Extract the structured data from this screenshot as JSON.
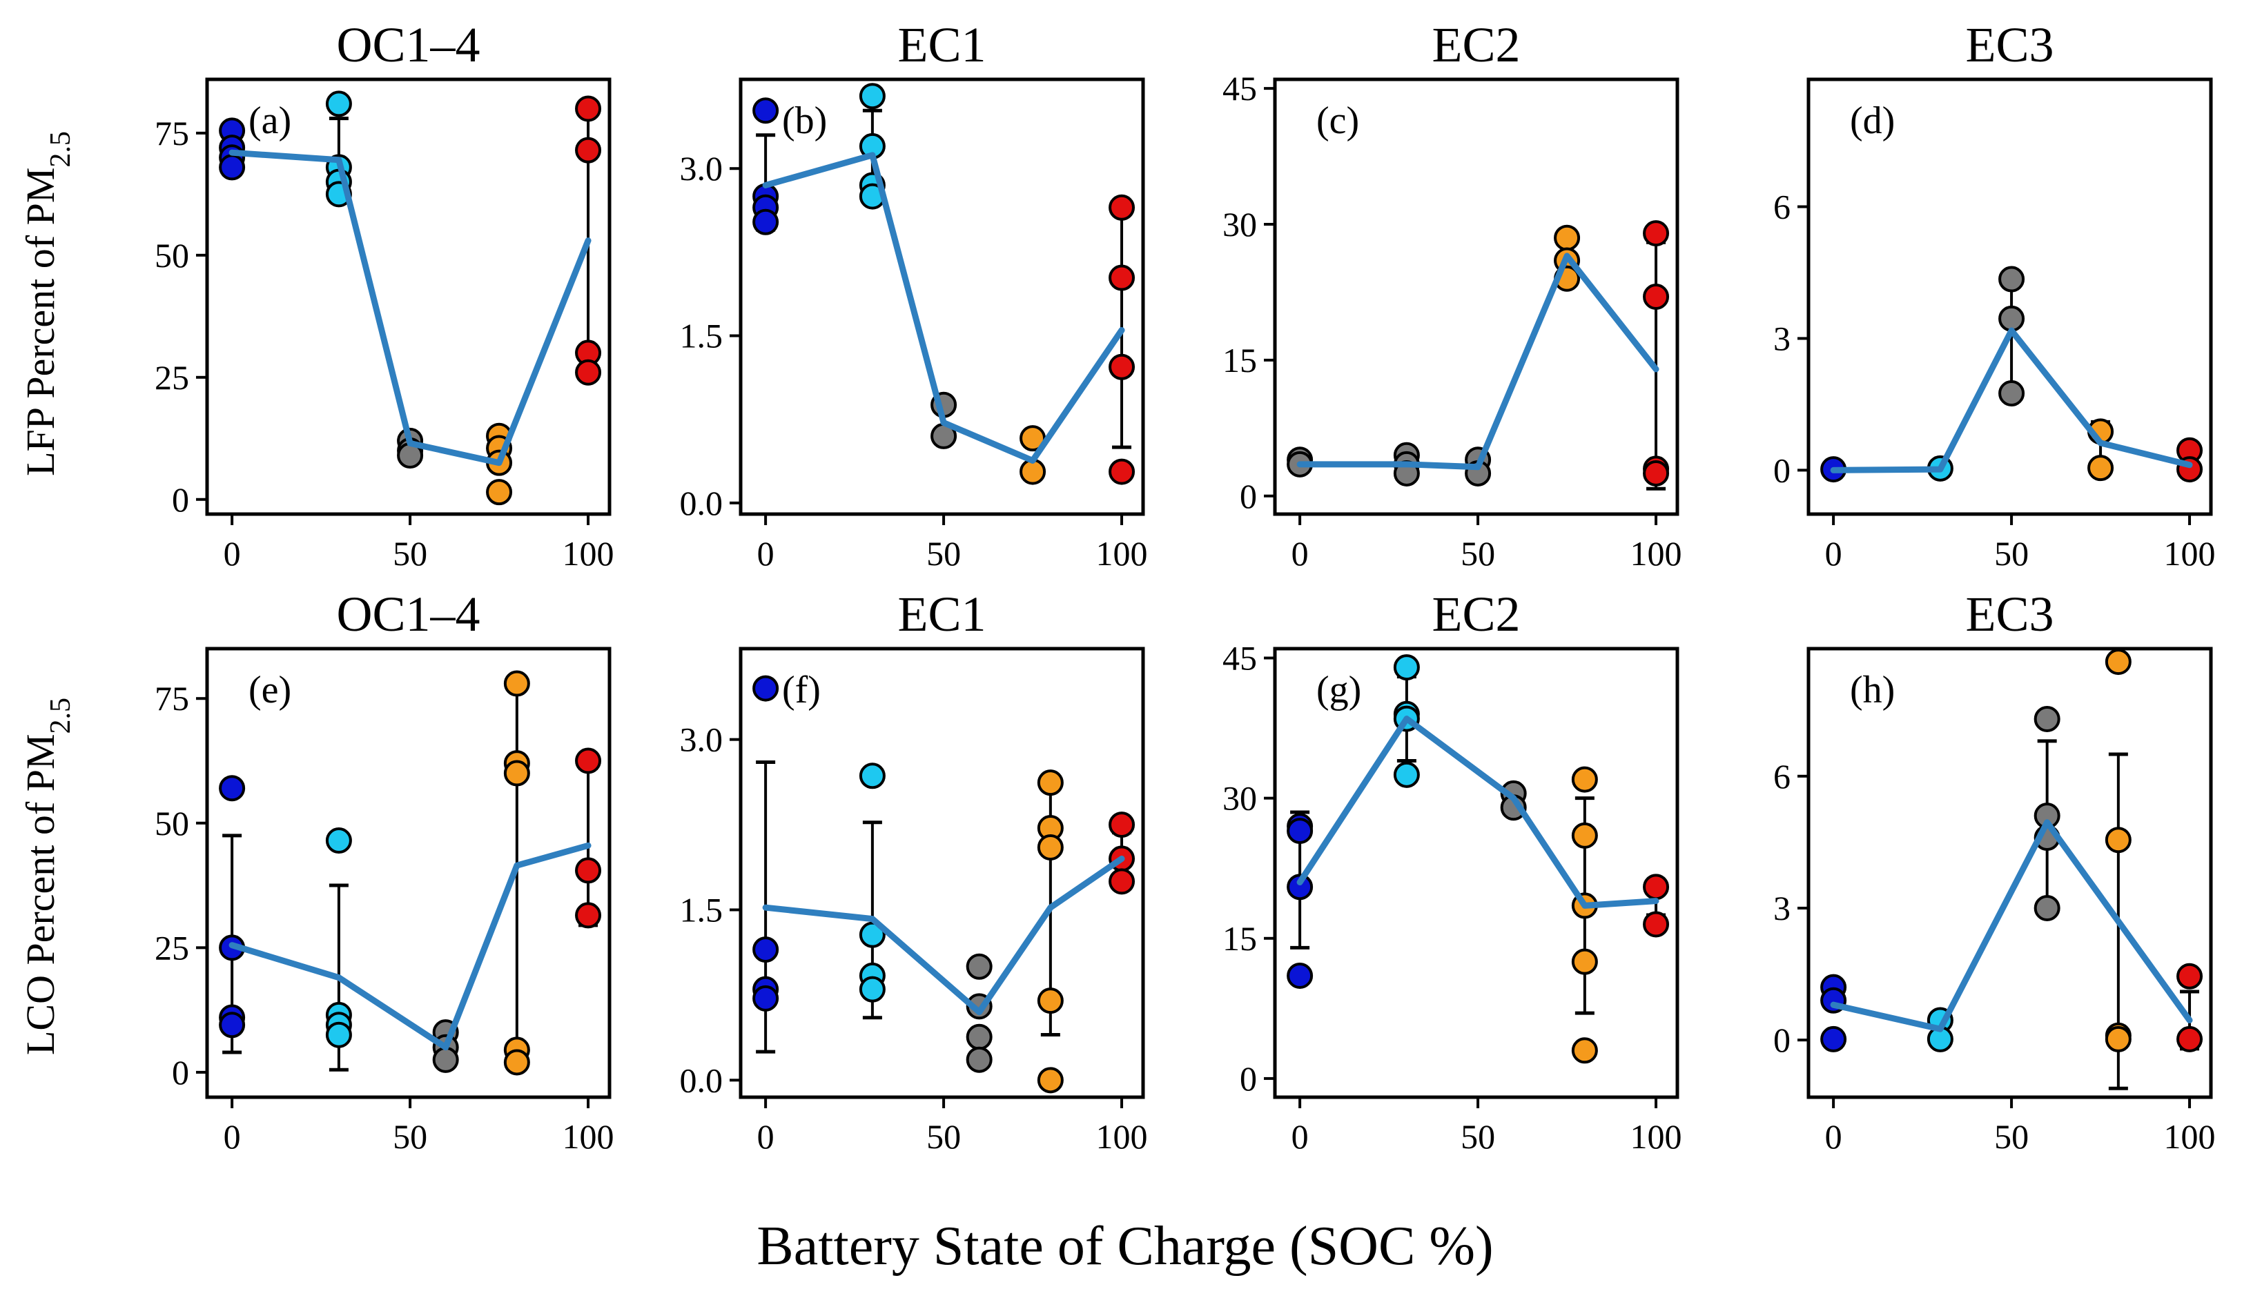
{
  "figure": {
    "x_label": "Battery State of Charge (SOC %)",
    "row_labels": [
      {
        "main": "LFP Percent of PM",
        "sub": "2.5"
      },
      {
        "main": "LCO Percent of PM",
        "sub": "2.5"
      }
    ],
    "colors": {
      "soc0": "#0a14d6",
      "soc30": "#1ec8f0",
      "socmid": "#7a7a7a",
      "soc75": "#f59a1c",
      "soc100": "#e21010",
      "line": "#2f7fbf",
      "marker_edge": "#000000",
      "error_bar": "#000000"
    }
  },
  "chart_data": [
    {
      "type": "scatter",
      "id": "a",
      "label": "(a)",
      "title": "OC1–4",
      "ylim": [
        -3,
        86
      ],
      "yticks": [
        0,
        25,
        50,
        75
      ],
      "ytick_labels": [
        "0",
        "25",
        "50",
        "75"
      ],
      "xlim": [
        -7,
        106
      ],
      "xticks": [
        0,
        50,
        100
      ],
      "xtick_labels": [
        "0",
        "50",
        "100"
      ],
      "points": [
        {
          "x": 0,
          "ys": [
            75.5,
            72,
            70,
            68
          ],
          "c": "soc0"
        },
        {
          "x": 30,
          "ys": [
            81,
            68,
            65,
            62.5
          ],
          "c": "soc30"
        },
        {
          "x": 50,
          "ys": [
            12,
            10,
            9
          ],
          "c": "socmid"
        },
        {
          "x": 75,
          "ys": [
            13,
            10.5,
            7.5,
            1.5
          ],
          "c": "soc75"
        },
        {
          "x": 100,
          "ys": [
            80,
            71.5,
            30,
            26
          ],
          "c": "soc100"
        }
      ],
      "line": {
        "x": [
          0,
          30,
          50,
          75,
          100
        ],
        "y": [
          71,
          69.5,
          11.5,
          7.5,
          53
        ]
      },
      "error_bars": [
        {
          "x": 0,
          "low": 67.5,
          "high": 74.5
        },
        {
          "x": 30,
          "low": 62,
          "high": 78
        },
        {
          "x": 100,
          "low": 26.5,
          "high": 80
        }
      ]
    },
    {
      "type": "scatter",
      "id": "b",
      "label": "(b)",
      "title": "EC1",
      "ylim": [
        -0.1,
        3.8
      ],
      "yticks": [
        0.0,
        1.5,
        3.0
      ],
      "ytick_labels": [
        "0.0",
        "1.5",
        "3.0"
      ],
      "xlim": [
        -7,
        106
      ],
      "xticks": [
        0,
        50,
        100
      ],
      "xtick_labels": [
        "0",
        "50",
        "100"
      ],
      "points": [
        {
          "x": 0,
          "ys": [
            3.52,
            2.75,
            2.65,
            2.52
          ],
          "c": "soc0"
        },
        {
          "x": 30,
          "ys": [
            3.65,
            3.2,
            2.85,
            2.75
          ],
          "c": "soc30"
        },
        {
          "x": 50,
          "ys": [
            0.88,
            0.6
          ],
          "c": "socmid"
        },
        {
          "x": 75,
          "ys": [
            0.58,
            0.28
          ],
          "c": "soc75"
        },
        {
          "x": 100,
          "ys": [
            2.65,
            2.02,
            1.22,
            0.28
          ],
          "c": "soc100"
        }
      ],
      "line": {
        "x": [
          0,
          30,
          50,
          75,
          100
        ],
        "y": [
          2.85,
          3.12,
          0.72,
          0.38,
          1.55
        ]
      },
      "error_bars": [
        {
          "x": 0,
          "low": 2.45,
          "high": 3.3
        },
        {
          "x": 30,
          "low": 2.72,
          "high": 3.52
        },
        {
          "x": 100,
          "low": 0.5,
          "high": 2.6
        }
      ]
    },
    {
      "type": "scatter",
      "id": "c",
      "label": "(c)",
      "title": "EC2",
      "ylim": [
        -2,
        46
      ],
      "yticks": [
        0,
        15,
        30,
        45
      ],
      "ytick_labels": [
        "0",
        "15",
        "30",
        "45"
      ],
      "xlim": [
        -7,
        106
      ],
      "xticks": [
        0,
        50,
        100
      ],
      "xtick_labels": [
        "0",
        "50",
        "100"
      ],
      "points": [
        {
          "x": 0,
          "ys": [
            4,
            3.5
          ],
          "c": "socmid"
        },
        {
          "x": 30,
          "ys": [
            4.5,
            3.5,
            2.5
          ],
          "c": "socmid"
        },
        {
          "x": 50,
          "ys": [
            4,
            2.5
          ],
          "c": "socmid"
        },
        {
          "x": 75,
          "ys": [
            28.5,
            26,
            24
          ],
          "c": "soc75"
        },
        {
          "x": 100,
          "ys": [
            29,
            22,
            3,
            2.5
          ],
          "c": "soc100"
        }
      ],
      "line": {
        "x": [
          0,
          30,
          50,
          75,
          100
        ],
        "y": [
          3.5,
          3.5,
          3.2,
          26.5,
          14
        ]
      },
      "error_bars": [
        {
          "x": 75,
          "low": 23.5,
          "high": 28
        },
        {
          "x": 100,
          "low": 0.8,
          "high": 28
        }
      ]
    },
    {
      "type": "scatter",
      "id": "d",
      "label": "(d)",
      "title": "EC3",
      "ylim": [
        -1,
        8.9
      ],
      "yticks": [
        0,
        3,
        6
      ],
      "ytick_labels": [
        "0",
        "3",
        "6"
      ],
      "xlim": [
        -7,
        106
      ],
      "xticks": [
        0,
        50,
        100
      ],
      "xtick_labels": [
        "0",
        "50",
        "100"
      ],
      "points": [
        {
          "x": 0,
          "ys": [
            0.02
          ],
          "c": "soc0"
        },
        {
          "x": 30,
          "ys": [
            0.04
          ],
          "c": "soc30"
        },
        {
          "x": 50,
          "ys": [
            4.35,
            3.45,
            1.75
          ],
          "c": "socmid"
        },
        {
          "x": 75,
          "ys": [
            0.88,
            0.05
          ],
          "c": "soc75"
        },
        {
          "x": 100,
          "ys": [
            0.45,
            0.02
          ],
          "c": "soc100"
        }
      ],
      "line": {
        "x": [
          0,
          30,
          50,
          75,
          100
        ],
        "y": [
          0,
          0.02,
          3.18,
          0.62,
          0.12
        ]
      },
      "error_bars": [
        {
          "x": 50,
          "low": 1.8,
          "high": 4.5
        },
        {
          "x": 75,
          "low": 0.1,
          "high": 1.1
        }
      ]
    },
    {
      "type": "scatter",
      "id": "e",
      "label": "(e)",
      "title": "OC1–4",
      "ylim": [
        -5,
        85
      ],
      "yticks": [
        0,
        25,
        50,
        75
      ],
      "ytick_labels": [
        "0",
        "25",
        "50",
        "75"
      ],
      "xlim": [
        -7,
        106
      ],
      "xticks": [
        0,
        50,
        100
      ],
      "xtick_labels": [
        "0",
        "50",
        "100"
      ],
      "points": [
        {
          "x": 0,
          "ys": [
            57,
            25,
            11,
            9.5
          ],
          "c": "soc0"
        },
        {
          "x": 30,
          "ys": [
            46.5,
            11.5,
            9.5,
            7.5
          ],
          "c": "soc30"
        },
        {
          "x": 60,
          "ys": [
            8,
            5,
            2.5
          ],
          "c": "socmid"
        },
        {
          "x": 80,
          "ys": [
            78,
            62,
            60,
            4.5,
            2
          ],
          "c": "soc75"
        },
        {
          "x": 100,
          "ys": [
            62.5,
            40.5,
            31.5
          ],
          "c": "soc100"
        }
      ],
      "line": {
        "x": [
          0,
          30,
          60,
          80,
          100
        ],
        "y": [
          25.5,
          19,
          5,
          41.5,
          45.5
        ]
      },
      "error_bars": [
        {
          "x": 0,
          "low": 4,
          "high": 47.5
        },
        {
          "x": 30,
          "low": 0.5,
          "high": 37.5
        },
        {
          "x": 80,
          "low": 3,
          "high": 77
        },
        {
          "x": 100,
          "low": 29.5,
          "high": 61
        }
      ]
    },
    {
      "type": "scatter",
      "id": "f",
      "label": "(f)",
      "title": "EC1",
      "ylim": [
        -0.15,
        3.8
      ],
      "yticks": [
        0.0,
        1.5,
        3.0
      ],
      "ytick_labels": [
        "0.0",
        "1.5",
        "3.0"
      ],
      "xlim": [
        -7,
        106
      ],
      "xticks": [
        0,
        50,
        100
      ],
      "xtick_labels": [
        "0",
        "50",
        "100"
      ],
      "points": [
        {
          "x": 0,
          "ys": [
            3.45,
            1.15,
            0.8,
            0.72
          ],
          "c": "soc0"
        },
        {
          "x": 30,
          "ys": [
            2.68,
            1.28,
            0.92,
            0.8
          ],
          "c": "soc30"
        },
        {
          "x": 60,
          "ys": [
            1.0,
            0.65,
            0.38,
            0.18
          ],
          "c": "socmid"
        },
        {
          "x": 80,
          "ys": [
            2.62,
            2.22,
            2.05,
            0.7,
            0.0
          ],
          "c": "soc75"
        },
        {
          "x": 100,
          "ys": [
            2.25,
            1.95,
            1.75
          ],
          "c": "soc100"
        }
      ],
      "line": {
        "x": [
          0,
          30,
          60,
          80,
          100
        ],
        "y": [
          1.52,
          1.42,
          0.6,
          1.52,
          1.95
        ]
      },
      "error_bars": [
        {
          "x": 0,
          "low": 0.25,
          "high": 2.8
        },
        {
          "x": 30,
          "low": 0.55,
          "high": 2.27
        },
        {
          "x": 80,
          "low": 0.4,
          "high": 2.6
        },
        {
          "x": 100,
          "low": 1.75,
          "high": 2.18
        }
      ]
    },
    {
      "type": "scatter",
      "id": "g",
      "label": "(g)",
      "title": "EC2",
      "ylim": [
        -2,
        46
      ],
      "yticks": [
        0,
        15,
        30,
        45
      ],
      "ytick_labels": [
        "0",
        "15",
        "30",
        "45"
      ],
      "xlim": [
        -7,
        106
      ],
      "xticks": [
        0,
        50,
        100
      ],
      "xtick_labels": [
        "0",
        "50",
        "100"
      ],
      "points": [
        {
          "x": 0,
          "ys": [
            27,
            26.5,
            20.5,
            11
          ],
          "c": "soc0"
        },
        {
          "x": 30,
          "ys": [
            44,
            39,
            38.5,
            32.5
          ],
          "c": "soc30"
        },
        {
          "x": 60,
          "ys": [
            30.5,
            29
          ],
          "c": "socmid"
        },
        {
          "x": 80,
          "ys": [
            32,
            26,
            18.5,
            12.5,
            3
          ],
          "c": "soc75"
        },
        {
          "x": 100,
          "ys": [
            20.5,
            16.5
          ],
          "c": "soc100"
        }
      ],
      "line": {
        "x": [
          0,
          30,
          60,
          80,
          100
        ],
        "y": [
          21,
          38.5,
          30,
          18.5,
          19
        ]
      },
      "error_bars": [
        {
          "x": 0,
          "low": 14,
          "high": 28.5
        },
        {
          "x": 30,
          "low": 34,
          "high": 43
        },
        {
          "x": 80,
          "low": 7,
          "high": 30
        },
        {
          "x": 100,
          "low": 17.5,
          "high": 20.5
        }
      ]
    },
    {
      "type": "scatter",
      "id": "h",
      "label": "(h)",
      "title": "EC3",
      "ylim": [
        -1.3,
        8.9
      ],
      "yticks": [
        0,
        3,
        6
      ],
      "ytick_labels": [
        "0",
        "3",
        "6"
      ],
      "xlim": [
        -7,
        106
      ],
      "xticks": [
        0,
        50,
        100
      ],
      "xtick_labels": [
        "0",
        "50",
        "100"
      ],
      "points": [
        {
          "x": 0,
          "ys": [
            1.2,
            0.9,
            0.02
          ],
          "c": "soc0"
        },
        {
          "x": 30,
          "ys": [
            0.45,
            0.02
          ],
          "c": "soc30"
        },
        {
          "x": 60,
          "ys": [
            7.3,
            5.1,
            4.6,
            3.0
          ],
          "c": "socmid"
        },
        {
          "x": 80,
          "ys": [
            8.6,
            4.55,
            0.1,
            0.02
          ],
          "c": "soc75"
        },
        {
          "x": 100,
          "ys": [
            1.45,
            0.02
          ],
          "c": "soc100"
        }
      ],
      "line": {
        "x": [
          0,
          30,
          60,
          80,
          100
        ],
        "y": [
          0.8,
          0.25,
          4.95,
          2.7,
          0.45
        ]
      },
      "error_bars": [
        {
          "x": 60,
          "low": 3.1,
          "high": 6.8
        },
        {
          "x": 80,
          "low": -1.1,
          "high": 6.5
        },
        {
          "x": 100,
          "low": -0.2,
          "high": 1.1
        }
      ]
    }
  ]
}
